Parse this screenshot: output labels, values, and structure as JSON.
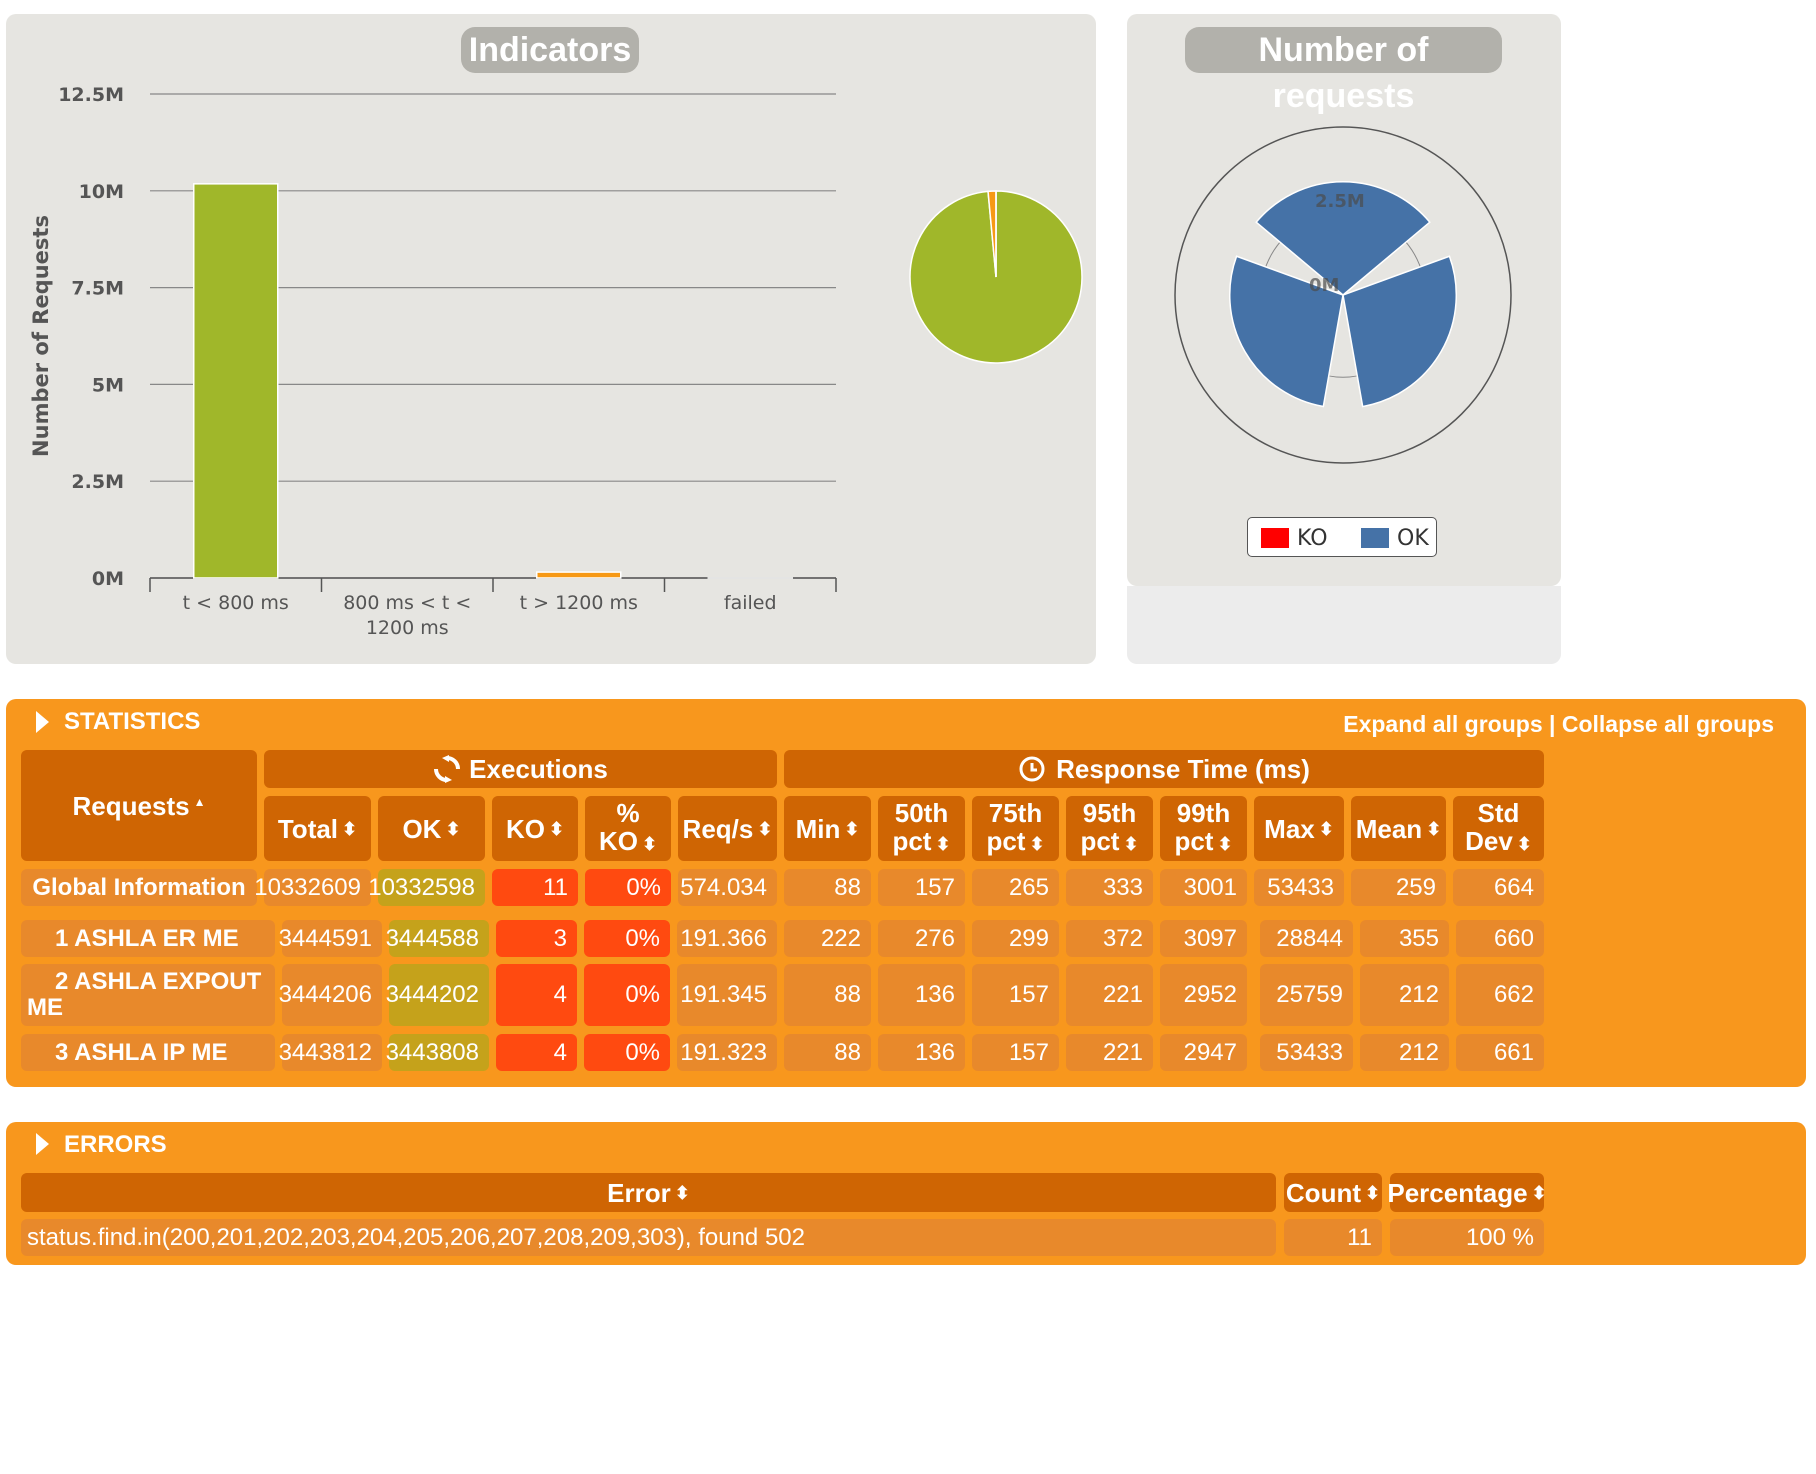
{
  "indicators": {
    "title": "Indicators",
    "ylabel": "Number of Requests"
  },
  "chart_data": [
    {
      "type": "bar",
      "title": "Indicators",
      "ylabel": "Number of Requests",
      "categories": [
        "t < 800 ms",
        "800 ms < t < 1200 ms",
        "t > 1200 ms",
        "failed"
      ],
      "category_lines": [
        [
          "t < 800 ms"
        ],
        [
          "800 ms < t <",
          "1200 ms"
        ],
        [
          "t > 1200 ms"
        ],
        [
          "failed"
        ]
      ],
      "values": [
        10180000,
        0,
        152598,
        11
      ],
      "colors": [
        "#a0b72a",
        "#e8b312",
        "#f79915",
        "#ff0000"
      ],
      "yticks": [
        0,
        2500000,
        5000000,
        7500000,
        10000000,
        12500000
      ],
      "ytick_labels": [
        "0M",
        "2.5M",
        "5M",
        "7.5M",
        "10M",
        "12.5M"
      ],
      "ylim": [
        0,
        12500000
      ]
    },
    {
      "type": "pie",
      "categories": [
        "t < 800 ms",
        "800 ms < t < 1200 ms",
        "t > 1200 ms",
        "failed"
      ],
      "values": [
        10180000,
        0,
        152598,
        11
      ],
      "colors": [
        "#a0b72a",
        "#e8b312",
        "#f79915",
        "#ff0000"
      ]
    },
    {
      "type": "polar-bar",
      "title": "Number of requests",
      "categories": [
        "1 ASHLA ER ME",
        "2 ASHLA EXPOUT ME",
        "3 ASHLA IP ME"
      ],
      "series": [
        {
          "name": "OK",
          "values": [
            3444588,
            3444202,
            3443808
          ],
          "color": "#4572a7"
        },
        {
          "name": "KO",
          "values": [
            3,
            4,
            4
          ],
          "color": "#ff0000"
        }
      ],
      "rlabels": [
        "0M",
        "2.5M"
      ],
      "rmax": 4500000,
      "legend": [
        "KO",
        "OK"
      ]
    }
  ],
  "requests_chart": {
    "title": "Number of requests",
    "legend": [
      {
        "label": "KO",
        "color": "#ff0000"
      },
      {
        "label": "OK",
        "color": "#4572a7"
      }
    ]
  },
  "statistics": {
    "title": "STATISTICS",
    "expand_label": "Expand all groups",
    "separator": "|",
    "collapse_label": "Collapse all groups",
    "executions_label": "Executions",
    "response_time_label": "Response Time (ms)",
    "requests_label": "Requests",
    "columns": {
      "total": "Total",
      "ok": "OK",
      "ko": "KO",
      "pko_1": "%",
      "pko_2": "KO",
      "reqs": "Req/s",
      "min": "Min",
      "p50_1": "50th",
      "p50_2": "pct",
      "p75_1": "75th",
      "p75_2": "pct",
      "p95_1": "95th",
      "p95_2": "pct",
      "p99_1": "99th",
      "p99_2": "pct",
      "max": "Max",
      "mean": "Mean",
      "std_1": "Std",
      "std_2": "Dev"
    },
    "rows": [
      {
        "name": "Global Information",
        "total": "10332609",
        "ok": "10332598",
        "ko": "11",
        "pko": "0%",
        "reqs": "574.034",
        "min": "88",
        "p50": "157",
        "p75": "265",
        "p95": "333",
        "p99": "3001",
        "max": "53433",
        "mean": "259",
        "std": "664"
      },
      {
        "name": "1 ASHLA ER ME",
        "total": "3444591",
        "ok": "3444588",
        "ko": "3",
        "pko": "0%",
        "reqs": "191.366",
        "min": "222",
        "p50": "276",
        "p75": "299",
        "p95": "372",
        "p99": "3097",
        "max": "28844",
        "mean": "355",
        "std": "660"
      },
      {
        "name_1": "2 ASHLA EXPOUT",
        "name_2": "ME",
        "total": "3444206",
        "ok": "3444202",
        "ko": "4",
        "pko": "0%",
        "reqs": "191.345",
        "min": "88",
        "p50": "136",
        "p75": "157",
        "p95": "221",
        "p99": "2952",
        "max": "25759",
        "mean": "212",
        "std": "662"
      },
      {
        "name": "3 ASHLA IP ME",
        "total": "3443812",
        "ok": "3443808",
        "ko": "4",
        "pko": "0%",
        "reqs": "191.323",
        "min": "88",
        "p50": "136",
        "p75": "157",
        "p95": "221",
        "p99": "2947",
        "max": "53433",
        "mean": "212",
        "std": "661"
      }
    ]
  },
  "errors": {
    "title": "ERRORS",
    "col_error": "Error",
    "col_count": "Count",
    "col_percentage": "Percentage",
    "rows": [
      {
        "error": "status.find.in(200,201,202,203,204,205,206,207,208,209,303), found 502",
        "count": "11",
        "percentage": "100 %"
      }
    ]
  }
}
